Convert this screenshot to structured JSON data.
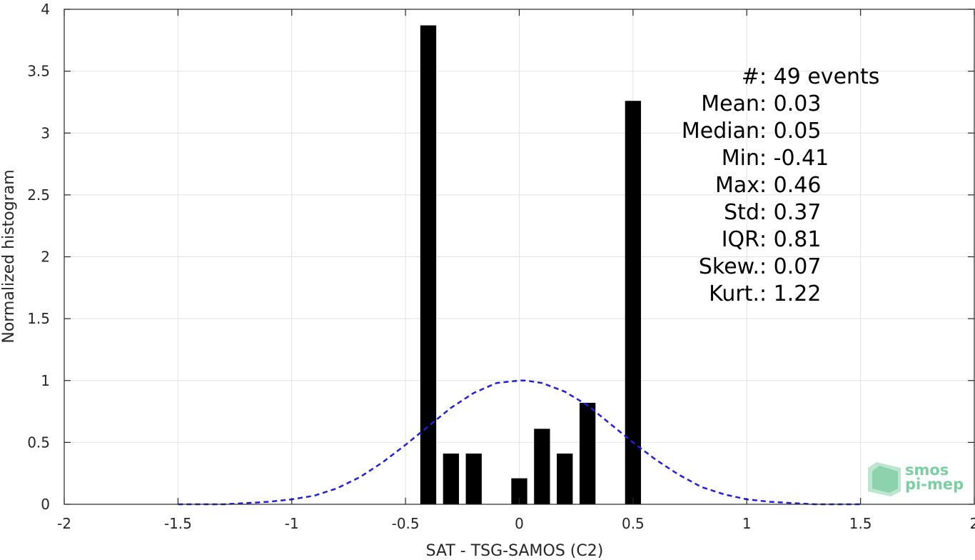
{
  "chart_data": {
    "type": "bar",
    "xlabel": "SAT - TSG-SAMOS (C2)",
    "ylabel": "Normalized histogram",
    "xlim": [
      -2,
      2
    ],
    "ylim": [
      0,
      4
    ],
    "grid": true,
    "x_ticks": [
      "-2",
      "-1.5",
      "-1",
      "-0.5",
      "0",
      "0.5",
      "1",
      "1.5",
      "2"
    ],
    "y_ticks": [
      "0",
      "0.5",
      "1",
      "1.5",
      "2",
      "2.5",
      "3",
      "3.5",
      "4"
    ],
    "bar_width": 0.07,
    "bar_color": "#000000",
    "series": [
      {
        "type": "bar",
        "x": [
          -0.4,
          -0.3,
          -0.2,
          0.0,
          0.1,
          0.2,
          0.3,
          0.5
        ],
        "values": [
          3.87,
          0.41,
          0.41,
          0.21,
          0.61,
          0.41,
          0.82,
          3.26
        ]
      },
      {
        "type": "line",
        "style": "dashed",
        "color": "#1f1fdc",
        "x": [
          -1.5,
          -1.4,
          -1.3,
          -1.2,
          -1.1,
          -1.0,
          -0.9,
          -0.8,
          -0.7,
          -0.6,
          -0.5,
          -0.4,
          -0.3,
          -0.2,
          -0.1,
          0.0,
          0.03,
          0.1,
          0.2,
          0.3,
          0.4,
          0.5,
          0.6,
          0.7,
          0.8,
          0.9,
          1.0,
          1.1,
          1.2,
          1.3,
          1.4,
          1.5
        ],
        "values": [
          0.0,
          0.0,
          0.0,
          0.01,
          0.02,
          0.04,
          0.07,
          0.13,
          0.22,
          0.34,
          0.48,
          0.63,
          0.78,
          0.9,
          0.98,
          1.0,
          1.0,
          0.98,
          0.91,
          0.8,
          0.65,
          0.5,
          0.36,
          0.24,
          0.14,
          0.08,
          0.04,
          0.02,
          0.01,
          0.0,
          0.0,
          0.0
        ]
      }
    ],
    "stats": [
      {
        "label": "#  : 49 events"
      },
      {
        "label": "Mean : 0.03"
      },
      {
        "label": "Median : 0.05"
      },
      {
        "label": "Min : -0.41"
      },
      {
        "label": "Max : 0.46"
      },
      {
        "label": "Std : 0.37"
      },
      {
        "label": "IQR : 0.81"
      },
      {
        "label": "Skew. : 0.07"
      },
      {
        "label": "Kurt. : 1.22"
      }
    ]
  },
  "logo": {
    "line1": "smos",
    "line2": "pi-mep"
  }
}
